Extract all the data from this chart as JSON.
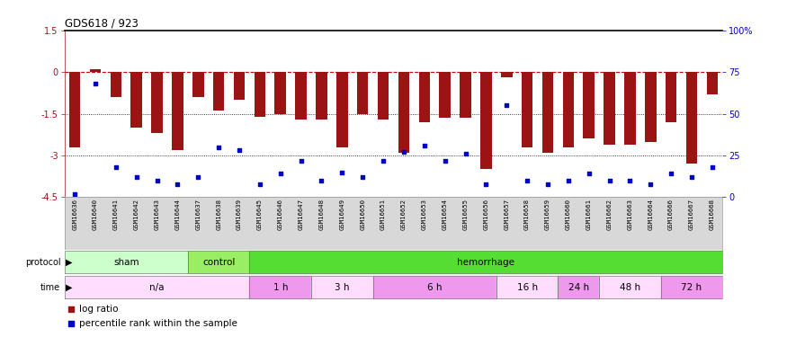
{
  "title": "GDS618 / 923",
  "samples": [
    "GSM16636",
    "GSM16640",
    "GSM16641",
    "GSM16642",
    "GSM16643",
    "GSM16644",
    "GSM16637",
    "GSM16638",
    "GSM16639",
    "GSM16645",
    "GSM16646",
    "GSM16647",
    "GSM16648",
    "GSM16649",
    "GSM16650",
    "GSM16651",
    "GSM16652",
    "GSM16653",
    "GSM16654",
    "GSM16655",
    "GSM16656",
    "GSM16657",
    "GSM16658",
    "GSM16659",
    "GSM16660",
    "GSM16661",
    "GSM16662",
    "GSM16663",
    "GSM16664",
    "GSM16666",
    "GSM16667",
    "GSM16668"
  ],
  "log_ratio": [
    -2.7,
    0.1,
    -0.9,
    -2.0,
    -2.2,
    -2.8,
    -0.9,
    -1.4,
    -1.0,
    -1.6,
    -1.5,
    -1.7,
    -1.7,
    -2.7,
    -1.5,
    -1.7,
    -2.9,
    -1.8,
    -1.65,
    -1.65,
    -3.5,
    -0.2,
    -2.7,
    -2.9,
    -2.7,
    -2.4,
    -2.6,
    -2.6,
    -2.5,
    -1.8,
    -3.3,
    -0.8
  ],
  "percentile": [
    2,
    68,
    18,
    12,
    10,
    8,
    12,
    30,
    28,
    8,
    14,
    22,
    10,
    15,
    12,
    22,
    27,
    31,
    22,
    26,
    8,
    55,
    10,
    8,
    10,
    14,
    10,
    10,
    8,
    14,
    12,
    18
  ],
  "bar_color": "#9B1313",
  "dot_color": "#0000CC",
  "zero_line_color": "#CC0000",
  "hline1": -1.5,
  "hline2": -3.0,
  "ylim_left": [
    -4.5,
    1.5
  ],
  "ylim_right": [
    0,
    100
  ],
  "yticks_left_vals": [
    1.5,
    0,
    -1.5,
    -3.0,
    -4.5
  ],
  "yticks_left_labels": [
    "1.5",
    "0",
    "-1.5",
    "-3",
    "-4.5"
  ],
  "yticks_right_vals": [
    100,
    75,
    50,
    25,
    0
  ],
  "yticks_right_labels": [
    "100%",
    "75",
    "50",
    "25",
    "0"
  ],
  "protocol_groups": [
    {
      "label": "sham",
      "start": 0,
      "end": 5,
      "color": "#CCFFCC"
    },
    {
      "label": "control",
      "start": 6,
      "end": 8,
      "color": "#99EE66"
    },
    {
      "label": "hemorrhage",
      "start": 9,
      "end": 31,
      "color": "#55DD33"
    }
  ],
  "time_groups": [
    {
      "label": "n/a",
      "start": 0,
      "end": 8,
      "color": "#FFDDFF"
    },
    {
      "label": "1 h",
      "start": 9,
      "end": 11,
      "color": "#EE99EE"
    },
    {
      "label": "3 h",
      "start": 12,
      "end": 14,
      "color": "#FFDDFF"
    },
    {
      "label": "6 h",
      "start": 15,
      "end": 20,
      "color": "#EE99EE"
    },
    {
      "label": "16 h",
      "start": 21,
      "end": 23,
      "color": "#FFDDFF"
    },
    {
      "label": "24 h",
      "start": 24,
      "end": 25,
      "color": "#EE99EE"
    },
    {
      "label": "48 h",
      "start": 26,
      "end": 28,
      "color": "#FFDDFF"
    },
    {
      "label": "72 h",
      "start": 29,
      "end": 31,
      "color": "#EE99EE"
    }
  ],
  "xlabel_bg": "#D8D8D8",
  "legend_log_ratio_label": "log ratio",
  "legend_pct_label": "percentile rank within the sample"
}
